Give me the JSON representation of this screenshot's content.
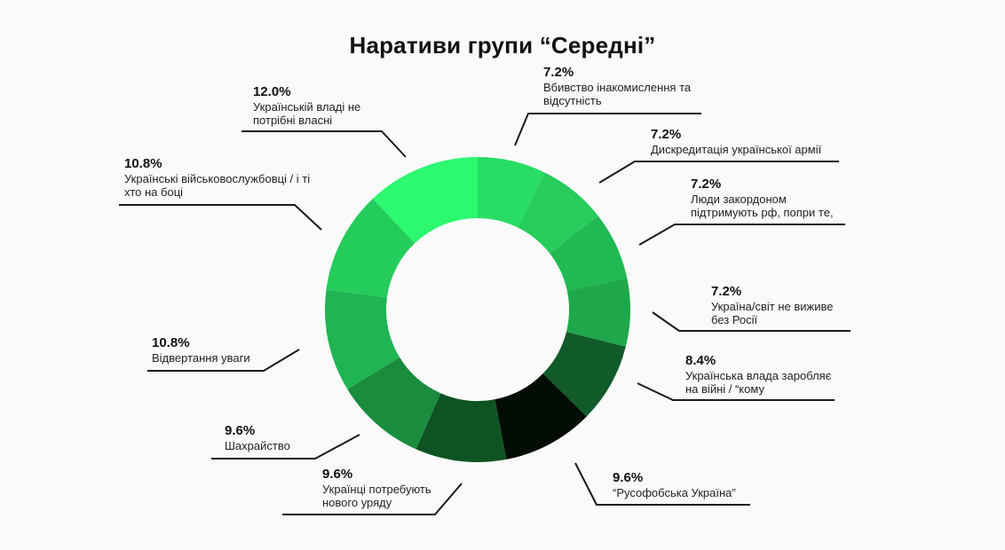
{
  "chart_data": {
    "type": "pie",
    "title": "Наративи групи “Середні”",
    "series": [
      {
        "label": "Вбивство інакомислення та відсутність",
        "value": 7.2,
        "value_label": "7.2%",
        "color": "#28dd64"
      },
      {
        "label": "Дискредитація української армії",
        "value": 7.2,
        "value_label": "7.2%",
        "color": "#26cc5c"
      },
      {
        "label": "Люди закордоном підтримують рф, попри те,",
        "value": 7.2,
        "value_label": "7.2%",
        "color": "#21b953"
      },
      {
        "label": "Україна/світ не виживе без Росії",
        "value": 7.2,
        "value_label": "7.2%",
        "color": "#1ea84b"
      },
      {
        "label": "Українська влада заробляє на війні / “кому",
        "value": 8.4,
        "value_label": "8.4%",
        "color": "#115a29"
      },
      {
        "label": "“Русофобська Україна”",
        "value": 9.6,
        "value_label": "9.6%",
        "color": "#030c05"
      },
      {
        "label": "Українці потребують нового уряду",
        "value": 9.6,
        "value_label": "9.6%",
        "color": "#0e5423"
      },
      {
        "label": "Шахрайство",
        "value": 9.6,
        "value_label": "9.6%",
        "color": "#1a8c3d"
      },
      {
        "label": "Відвертання уваги",
        "value": 10.8,
        "value_label": "10.8%",
        "color": "#20b453"
      },
      {
        "label": "Українські військовослужбовці / і ті хто на боці",
        "value": 10.8,
        "value_label": "10.8%",
        "color": "#24cc5b"
      },
      {
        "label": "Українській владі не потрібні власні",
        "value": 12.0,
        "value_label": "12.0%",
        "color": "#2cf870"
      }
    ]
  }
}
